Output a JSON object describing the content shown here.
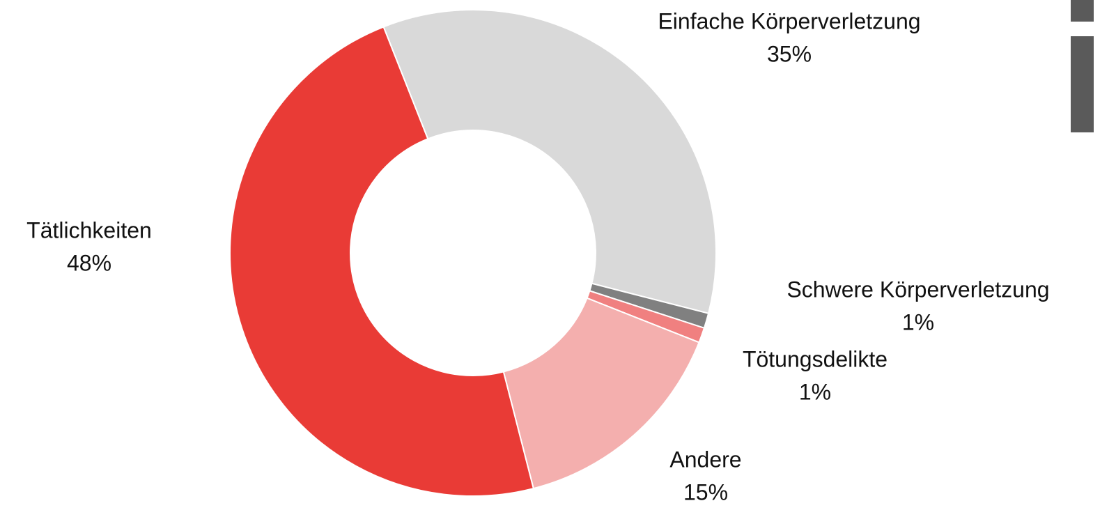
{
  "chart_data": {
    "type": "donut",
    "categories": [
      "Einfache Körperverletzung",
      "Schwere Körperverletzung",
      "Tötungsdelikte",
      "Andere",
      "Tätlichkeiten"
    ],
    "values": [
      35,
      1,
      1,
      15,
      48
    ],
    "value_labels": [
      "35%",
      "1%",
      "1%",
      "15%",
      "48%"
    ],
    "colors": [
      "#d9d9d9",
      "#808080",
      "#f08080",
      "#f4afae",
      "#e93b36"
    ]
  }
}
